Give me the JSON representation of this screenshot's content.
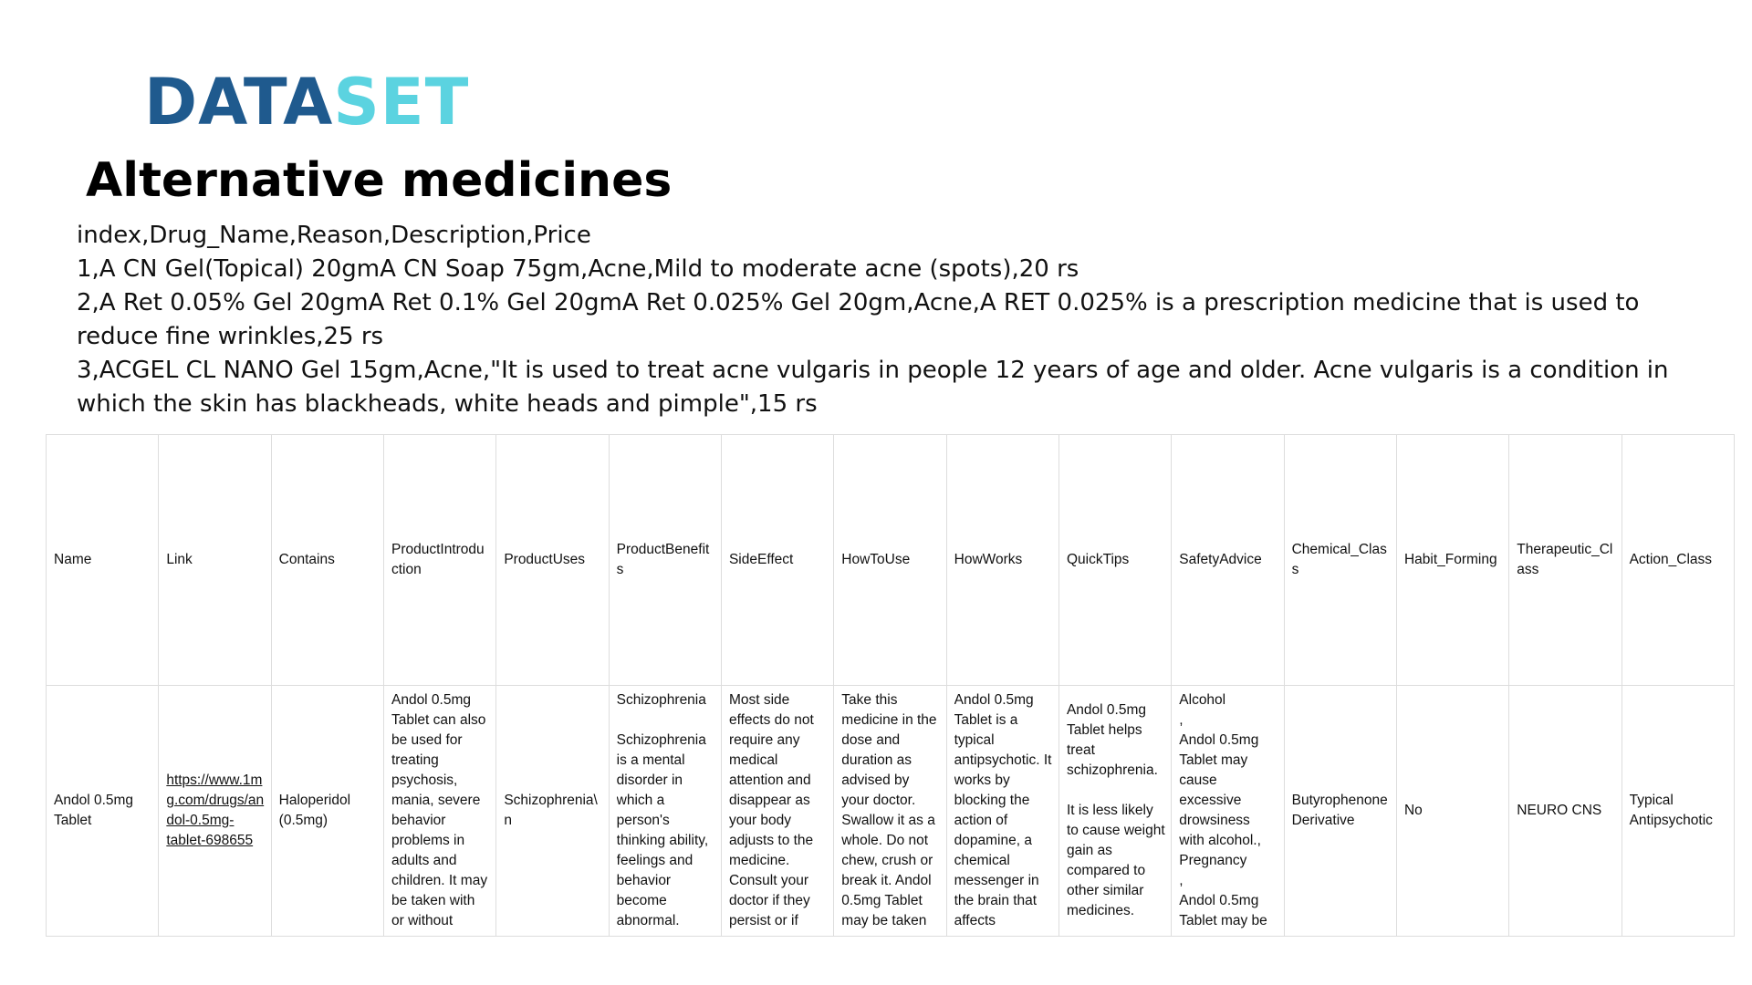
{
  "logo": {
    "part1": "DATA",
    "part2": "SET"
  },
  "title": "Alternative medicines",
  "csv_lines": [
    "index,Drug_Name,Reason,Description,Price",
    "1,A CN Gel(Topical) 20gmA CN Soap 75gm,Acne,Mild to moderate acne (spots),20 rs",
    "2,A Ret 0.05% Gel 20gmA Ret 0.1% Gel 20gmA Ret 0.025% Gel 20gm,Acne,A RET 0.025% is a prescription medicine that is used to reduce fine wrinkles,25 rs",
    "3,ACGEL CL NANO Gel 15gm,Acne,\"It is used to treat acne vulgaris in people 12 years of age and older. Acne vulgaris is a condition in which the skin has blackheads, white heads and pimple\",15 rs"
  ],
  "table": {
    "headers": [
      "Name",
      "Link",
      "Contains",
      "ProductIntroduction",
      "ProductUses",
      "ProductBenefits",
      "SideEffect",
      "HowToUse",
      "HowWorks",
      "QuickTips",
      "SafetyAdvice",
      "Chemical_Class",
      "Habit_Forming",
      "Therapeutic_Class",
      "Action_Class"
    ],
    "row": {
      "name": "Andol 0.5mg Tablet",
      "link": "https://www.1mg.com/drugs/andol-0.5mg-tablet-698655",
      "contains": "Haloperidol (0.5mg)",
      "product_introduction": "Andol 0.5mg Tablet can also be used for treating psychosis, mania, severe behavior problems in adults and children. It may be taken with or without",
      "product_uses": "Schizophrenia\\n",
      "product_benefits": "Schizophrenia\n\nSchizophrenia is a mental disorder in which a person's thinking ability, feelings and behavior become abnormal.",
      "side_effect": "Most side effects do not require any medical attention and disappear as your body adjusts to the medicine. Consult your doctor if they persist or if",
      "how_to_use": "Take this medicine in the dose and duration as advised by your doctor. Swallow it as a whole. Do not chew, crush or break it. Andol 0.5mg Tablet may be taken",
      "how_works": "Andol 0.5mg Tablet is a typical antipsychotic. It works by blocking the action of dopamine, a chemical messenger in the brain that affects",
      "quick_tips": "Andol 0.5mg Tablet helps treat schizophrenia.\n\nIt is less likely to cause weight gain as compared to other similar medicines.",
      "safety_advice": "Alcohol\n,\nAndol 0.5mg Tablet may cause excessive drowsiness with alcohol.,\nPregnancy\n,\nAndol 0.5mg Tablet may be",
      "chemical_class": "Butyrophenone Derivative",
      "habit_forming": "No",
      "therapeutic_class": "NEURO CNS",
      "action_class": "Typical Antipsychotic"
    }
  }
}
